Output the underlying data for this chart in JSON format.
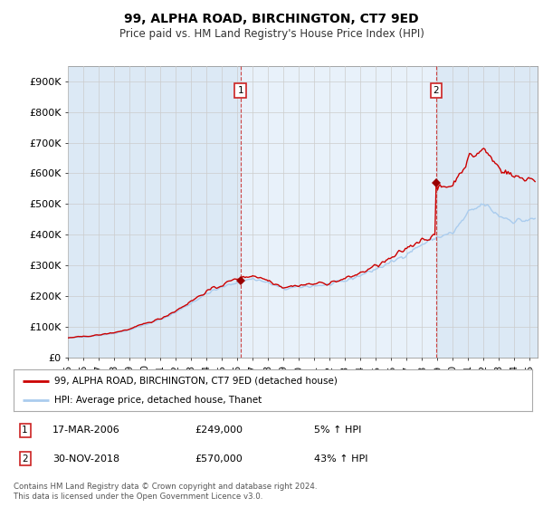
{
  "title": "99, ALPHA ROAD, BIRCHINGTON, CT7 9ED",
  "subtitle": "Price paid vs. HM Land Registry's House Price Index (HPI)",
  "ylabel_ticks": [
    "£0",
    "£100K",
    "£200K",
    "£300K",
    "£400K",
    "£500K",
    "£600K",
    "£700K",
    "£800K",
    "£900K"
  ],
  "ylim": [
    0,
    950000
  ],
  "xlim_start": 1995.0,
  "xlim_end": 2025.5,
  "xticks": [
    1995,
    1996,
    1997,
    1998,
    1999,
    2000,
    2001,
    2002,
    2003,
    2004,
    2005,
    2006,
    2007,
    2008,
    2009,
    2010,
    2011,
    2012,
    2013,
    2014,
    2015,
    2016,
    2017,
    2018,
    2019,
    2020,
    2021,
    2022,
    2023,
    2024,
    2025
  ],
  "background_color": "#dce9f5",
  "shade_color": "#e8f1fa",
  "fig_bg_color": "#ffffff",
  "red_line_color": "#cc0000",
  "blue_line_color": "#aaccee",
  "marker_color": "#990000",
  "transaction1_x": 2006.21,
  "transaction1_y": 249000,
  "transaction2_x": 2018.92,
  "transaction2_y": 570000,
  "vline1_x": 2006.21,
  "vline2_x": 2018.92,
  "legend_label_red": "99, ALPHA ROAD, BIRCHINGTON, CT7 9ED (detached house)",
  "legend_label_blue": "HPI: Average price, detached house, Thanet",
  "note1_date": "17-MAR-2006",
  "note1_price": "£249,000",
  "note1_hpi": "5% ↑ HPI",
  "note2_date": "30-NOV-2018",
  "note2_price": "£570,000",
  "note2_hpi": "43% ↑ HPI",
  "footer": "Contains HM Land Registry data © Crown copyright and database right 2024.\nThis data is licensed under the Open Government Licence v3.0."
}
